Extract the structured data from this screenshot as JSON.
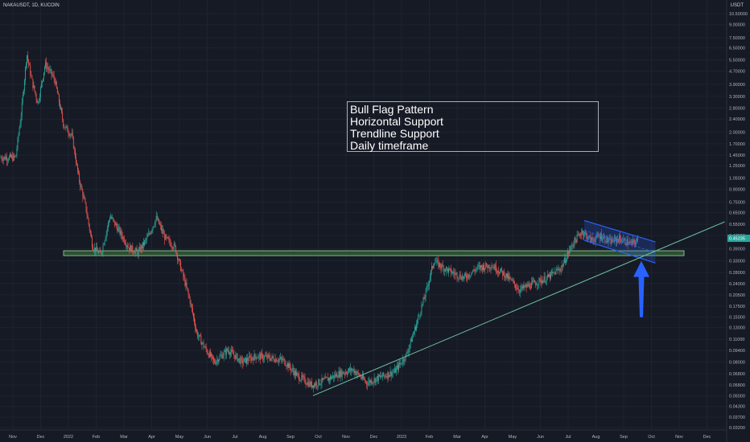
{
  "header": {
    "symbol": "NAKAUSDT, 1D, KUCOIN",
    "currency": "USDT"
  },
  "colors": {
    "background": "#161a25",
    "up": "#26a69a",
    "down": "#ef5350",
    "support_fill": "#2f5a34",
    "channel": "#2962ff",
    "trendline": "#6fc3a0",
    "arrow": "#2962ff",
    "price_badge": "#26a69a"
  },
  "annotation": {
    "lines": [
      "Bull Flag Pattern",
      "Horizontal Support",
      "Trendline Support",
      "Daily timeframe"
    ]
  },
  "chart_data": {
    "type": "candlestick",
    "y_scale": "log",
    "y_ticks": [
      "10.50000",
      "9.00000",
      "7.50000",
      "6.50000",
      "5.50000",
      "4.70000",
      "3.90000",
      "3.30000",
      "2.80000",
      "2.40000",
      "2.00000",
      "1.70000",
      "1.45000",
      "1.25000",
      "1.05000",
      "0.90000",
      "0.75000",
      "0.65000",
      "0.55000",
      "0.47000",
      "0.39000",
      "0.33000",
      "0.28000",
      "0.24000",
      "0.20500",
      "0.17500",
      "0.15000",
      "0.13000",
      "0.11000",
      "0.09400",
      "0.08000",
      "0.06800",
      "0.05800",
      "0.05000",
      "0.04300",
      "0.03700",
      "0.03200"
    ],
    "x_ticks": [
      "Nov",
      "Dec",
      "2022",
      "Feb",
      "Mar",
      "Apr",
      "May",
      "Jun",
      "Jul",
      "Aug",
      "Sep",
      "Oct",
      "Nov",
      "Dec",
      "2023",
      "Feb",
      "Mar",
      "Apr",
      "May",
      "Jun",
      "Jul",
      "Aug",
      "Sep",
      "Oct",
      "Nov",
      "Dec"
    ],
    "last_price": "0.45235",
    "price_path": [
      {
        "x": "Nov 2021",
        "y": 1.4
      },
      {
        "x": "Nov 2021",
        "y": 2.6
      },
      {
        "x": "Nov 2021",
        "y": 6.0
      },
      {
        "x": "Nov 2021",
        "y": 4.0
      },
      {
        "x": "Nov 2021",
        "y": 3.0
      },
      {
        "x": "Dec 2021",
        "y": 5.2
      },
      {
        "x": "Dec 2021",
        "y": 4.2
      },
      {
        "x": "Dec 2021",
        "y": 2.2
      },
      {
        "x": "Jan 2022",
        "y": 1.9
      },
      {
        "x": "Jan 2022",
        "y": 1.05
      },
      {
        "x": "Jan 2022",
        "y": 0.7
      },
      {
        "x": "Jan 2022",
        "y": 0.4
      },
      {
        "x": "Feb 2022",
        "y": 0.36
      },
      {
        "x": "Feb 2022",
        "y": 0.62
      },
      {
        "x": "Feb 2022",
        "y": 0.5
      },
      {
        "x": "Mar 2022",
        "y": 0.4
      },
      {
        "x": "Mar 2022",
        "y": 0.37
      },
      {
        "x": "Mar 2022",
        "y": 0.45
      },
      {
        "x": "Apr 2022",
        "y": 0.6
      },
      {
        "x": "Apr 2022",
        "y": 0.45
      },
      {
        "x": "Apr 2022",
        "y": 0.4
      },
      {
        "x": "May 2022",
        "y": 0.27
      },
      {
        "x": "May 2022",
        "y": 0.19
      },
      {
        "x": "May 2022",
        "y": 0.12
      },
      {
        "x": "May 2022",
        "y": 0.1
      },
      {
        "x": "Jun 2022",
        "y": 0.08
      },
      {
        "x": "Jun 2022",
        "y": 0.095
      },
      {
        "x": "Jul 2022",
        "y": 0.08
      },
      {
        "x": "Jul 2022",
        "y": 0.087
      },
      {
        "x": "Aug 2022",
        "y": 0.085
      },
      {
        "x": "Aug 2022",
        "y": 0.082
      },
      {
        "x": "Sep 2022",
        "y": 0.066
      },
      {
        "x": "Sep 2022",
        "y": 0.058
      },
      {
        "x": "Oct 2022",
        "y": 0.062
      },
      {
        "x": "Oct 2022",
        "y": 0.068
      },
      {
        "x": "Nov 2022",
        "y": 0.072
      },
      {
        "x": "Nov 2022",
        "y": 0.06
      },
      {
        "x": "Dec 2022",
        "y": 0.065
      },
      {
        "x": "Dec 2022",
        "y": 0.07
      },
      {
        "x": "Jan 2023",
        "y": 0.088
      },
      {
        "x": "Jan 2023",
        "y": 0.13
      },
      {
        "x": "Jan 2023",
        "y": 0.2
      },
      {
        "x": "Feb 2023",
        "y": 0.33
      },
      {
        "x": "Feb 2023",
        "y": 0.3
      },
      {
        "x": "Feb 2023",
        "y": 0.28
      },
      {
        "x": "Mar 2023",
        "y": 0.26
      },
      {
        "x": "Mar 2023",
        "y": 0.3
      },
      {
        "x": "Apr 2023",
        "y": 0.31
      },
      {
        "x": "Apr 2023",
        "y": 0.27
      },
      {
        "x": "May 2023",
        "y": 0.22
      },
      {
        "x": "May 2023",
        "y": 0.24
      },
      {
        "x": "Jun 2023",
        "y": 0.26
      },
      {
        "x": "Jun 2023",
        "y": 0.3
      },
      {
        "x": "Jul 2023",
        "y": 0.42
      },
      {
        "x": "Jul 2023",
        "y": 0.5
      },
      {
        "x": "Jul 2023",
        "y": 0.44
      },
      {
        "x": "Aug 2023",
        "y": 0.47
      },
      {
        "x": "Aug 2023",
        "y": 0.43
      },
      {
        "x": "Aug 2023",
        "y": 0.45
      },
      {
        "x": "Sep 2023",
        "y": 0.42
      },
      {
        "x": "Sep 2023",
        "y": 0.45
      }
    ],
    "horizontal_support": {
      "low": 0.355,
      "high": 0.38,
      "from": "Jan 2022",
      "to": "Nov 2023"
    },
    "trendline": {
      "from": {
        "x": "Sep 2022",
        "y": 0.05
      },
      "to": {
        "x": "Dec 2023",
        "y": 0.57
      }
    },
    "flag_channel": {
      "upper": {
        "from": {
          "x": "Jul 2023",
          "y": 0.58
        },
        "to": {
          "x": "Oct 2023",
          "y": 0.43
        }
      },
      "lower": {
        "from": {
          "x": "Jul 2023",
          "y": 0.44
        },
        "to": {
          "x": "Oct 2023",
          "y": 0.32
        }
      }
    },
    "arrow": {
      "x": "Sep 2023",
      "from_y": 0.15,
      "to_y": 0.33
    }
  }
}
